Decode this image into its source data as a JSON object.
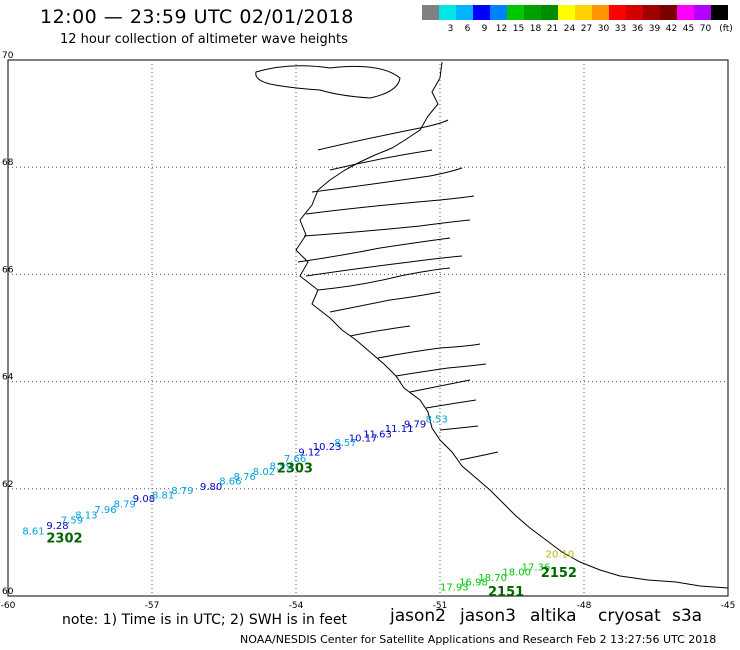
{
  "header": {
    "title": "12:00 — 23:59 UTC 02/01/2018",
    "subtitle": "12 hour collection of altimeter wave heights"
  },
  "colorbar": {
    "unit": "(ft)",
    "colors": [
      "#808080",
      "#00e6e6",
      "#00b4ff",
      "#0000ff",
      "#0082ff",
      "#00c800",
      "#00a000",
      "#008c00",
      "#ffff00",
      "#ffd200",
      "#ff9600",
      "#ff0000",
      "#d20000",
      "#a00000",
      "#780000",
      "#ff00ff",
      "#b400ff",
      "#000000"
    ],
    "labels": [
      "3",
      "6",
      "9",
      "12",
      "15",
      "18",
      "21",
      "24",
      "27",
      "30",
      "33",
      "36",
      "39",
      "42",
      "45",
      "70"
    ]
  },
  "axes": {
    "lon_ticks": [
      -60,
      -57,
      -54,
      -51,
      -48,
      -45
    ],
    "lat_ticks": [
      60,
      62,
      64,
      66,
      68,
      70
    ],
    "lon_labels": [
      "-60",
      "-57",
      "-54",
      "-51",
      "-48",
      "-45"
    ],
    "lat_labels": [
      "60",
      "62",
      "64",
      "66",
      "68",
      "70"
    ],
    "lon_range": [
      -60,
      -45
    ],
    "lat_range": [
      60,
      70
    ],
    "grid": "dotted"
  },
  "tracks": [
    {
      "satellite": "jason2",
      "time_label": "2302",
      "time_color": "#006400",
      "time_pos": {
        "lon": -59.2,
        "lat": 61.0
      },
      "points": [
        {
          "lon": -59.7,
          "lat": 61.15,
          "label": "8.61",
          "color": "#00a0dc"
        },
        {
          "lon": -59.2,
          "lat": 61.25,
          "label": "9.28",
          "color": "#0000c8"
        },
        {
          "lon": -58.9,
          "lat": 61.35,
          "label": "7.59",
          "color": "#00a0dc"
        },
        {
          "lon": -58.6,
          "lat": 61.45,
          "label": "8.13",
          "color": "#00a0dc"
        },
        {
          "lon": -58.2,
          "lat": 61.55,
          "label": "7.96",
          "color": "#00a0dc"
        },
        {
          "lon": -57.8,
          "lat": 61.65,
          "label": "8.79",
          "color": "#00a0dc"
        },
        {
          "lon": -57.4,
          "lat": 61.75,
          "label": "9.08",
          "color": "#0000c8"
        },
        {
          "lon": -57.0,
          "lat": 61.82,
          "label": "8.81",
          "color": "#00a0dc"
        },
        {
          "lon": -56.6,
          "lat": 61.9,
          "label": "8.79",
          "color": "#00a0dc"
        },
        {
          "lon": -56.0,
          "lat": 61.98,
          "label": "9.80",
          "color": "#0000c8"
        },
        {
          "lon": -55.6,
          "lat": 62.08,
          "label": "8.66",
          "color": "#00a0dc"
        },
        {
          "lon": -55.3,
          "lat": 62.16,
          "label": "8.76",
          "color": "#00a0dc"
        },
        {
          "lon": -54.9,
          "lat": 62.26,
          "label": "8.02",
          "color": "#00a0dc"
        },
        {
          "lon": -54.55,
          "lat": 62.36,
          "label": "8.59",
          "color": "#00a0dc"
        },
        {
          "lon": -54.25,
          "lat": 62.5,
          "label": "7.66",
          "color": "#00a0dc"
        },
        {
          "lon": -53.95,
          "lat": 62.62,
          "label": "9.12",
          "color": "#0000c8"
        },
        {
          "lon": -53.65,
          "lat": 62.72,
          "label": "10.23",
          "color": "#0000c8"
        },
        {
          "lon": -53.2,
          "lat": 62.8,
          "label": "8.57",
          "color": "#00a0dc"
        },
        {
          "lon": -52.9,
          "lat": 62.88,
          "label": "10.17",
          "color": "#0000c8"
        },
        {
          "lon": -52.6,
          "lat": 62.96,
          "label": "11.63",
          "color": "#0000c8"
        },
        {
          "lon": -52.15,
          "lat": 63.06,
          "label": "11.11",
          "color": "#0000c8"
        },
        {
          "lon": -51.75,
          "lat": 63.14,
          "label": "9.79",
          "color": "#0000c8"
        },
        {
          "lon": -51.3,
          "lat": 63.24,
          "label": "8.53",
          "color": "#00a0dc"
        }
      ]
    },
    {
      "satellite": "jason2",
      "time_label": "2303",
      "time_color": "#006400",
      "time_pos": {
        "lon": -54.4,
        "lat": 62.3
      },
      "points": []
    },
    {
      "satellite": "jason3",
      "time_label": "2151",
      "time_color": "#006400",
      "time_pos": {
        "lon": -50.0,
        "lat": 60.0
      },
      "points": [
        {
          "lon": -51.0,
          "lat": 60.1,
          "label": "17.93",
          "color": "#00c800"
        },
        {
          "lon": -50.6,
          "lat": 60.2,
          "label": "16.98",
          "color": "#00c800"
        },
        {
          "lon": -50.2,
          "lat": 60.28,
          "label": "18.70",
          "color": "#00c800"
        },
        {
          "lon": -49.7,
          "lat": 60.38,
          "label": "18.00",
          "color": "#00c800"
        },
        {
          "lon": -49.3,
          "lat": 60.48,
          "label": "17.36",
          "color": "#00c800"
        }
      ]
    },
    {
      "satellite": "jason3",
      "time_label": "2152",
      "time_color": "#006400",
      "time_pos": {
        "lon": -48.9,
        "lat": 60.35
      },
      "points": [
        {
          "lon": -48.8,
          "lat": 60.72,
          "label": "20.10",
          "color": "#b4b400"
        }
      ]
    }
  ],
  "legend": {
    "note": "note: 1) Time is in UTC; 2) SWH is in feet",
    "satellites": [
      {
        "name": "jason2",
        "color": "#0000ff"
      },
      {
        "name": "jason3",
        "color": "#00b400"
      },
      {
        "name": "altika",
        "color": "#ff9600"
      },
      {
        "name": "cryosat",
        "color": "#ff0000"
      },
      {
        "name": "s3a",
        "color": "#a00000"
      }
    ]
  },
  "footer": "NOAA/NESDIS Center for Satellite Applications and Research    Feb  2 13:27:56 UTC 2018"
}
